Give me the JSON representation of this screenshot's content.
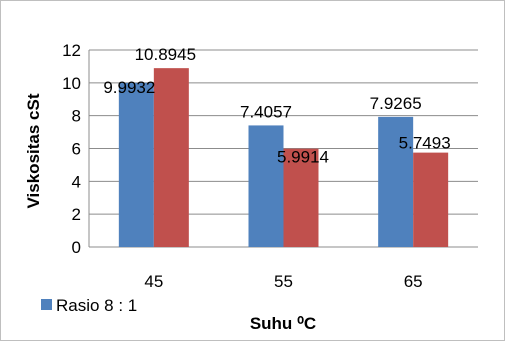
{
  "chart_data": {
    "type": "bar",
    "title": "",
    "xlabel": "Suhu",
    "xlabel_unit": "⁰C",
    "ylabel": "Viskositas cSt",
    "ylim": [
      0,
      12
    ],
    "yticks": [
      "0",
      "2",
      "4",
      "6",
      "8",
      "10",
      "12"
    ],
    "categories": [
      "45",
      "55",
      "65"
    ],
    "grid": true,
    "legend_placement": "bottom-left",
    "series": [
      {
        "name": "Rasio 8 : 1",
        "color": "#4f81bd",
        "values": [
          9.9932,
          7.4057,
          7.9265
        ],
        "labels": [
          "9.9932",
          "7.4057",
          "7.9265"
        ]
      },
      {
        "color": "#c0504d",
        "values": [
          10.8945,
          5.9914,
          5.7493
        ],
        "labels": [
          "10.8945",
          "5.9914",
          "5.7493"
        ]
      }
    ]
  }
}
